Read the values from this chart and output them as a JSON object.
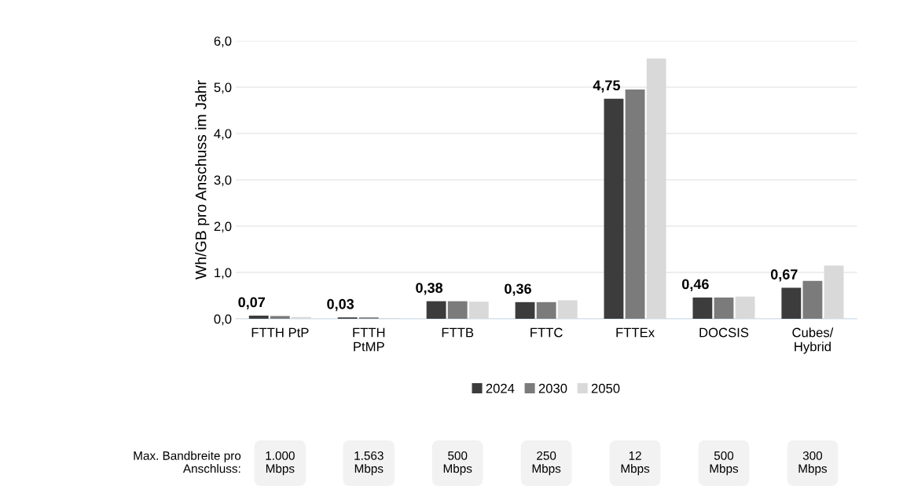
{
  "chart_data": {
    "type": "bar",
    "ylabel": "Wh/GB pro Anschuss im Jahr",
    "categories": [
      "FTTH PtP",
      "FTTH\nPtMP",
      "FTTB",
      "FTTC",
      "FTTEx",
      "DOCSIS",
      "Cubes/\nHybrid"
    ],
    "series": [
      {
        "name": "2024",
        "color": "#3c3c3c",
        "values": [
          0.07,
          0.03,
          0.38,
          0.36,
          4.75,
          0.46,
          0.67
        ],
        "value_labels": [
          "0,07",
          "0,03",
          "0,38",
          "0,36",
          "4,75",
          "0,46",
          "0,67"
        ]
      },
      {
        "name": "2030",
        "color": "#7b7b7b",
        "values": [
          0.06,
          0.03,
          0.38,
          0.36,
          4.95,
          0.46,
          0.82
        ]
      },
      {
        "name": "2050",
        "color": "#d9d9d9",
        "values": [
          0.04,
          0.02,
          0.37,
          0.4,
          5.62,
          0.48,
          1.15
        ]
      }
    ],
    "ylim": [
      0,
      6
    ],
    "yticks": [
      {
        "value": 0,
        "label": "0,0"
      },
      {
        "value": 1,
        "label": "1,0"
      },
      {
        "value": 2,
        "label": "2,0"
      },
      {
        "value": 3,
        "label": "3,0"
      },
      {
        "value": 4,
        "label": "4,0"
      },
      {
        "value": 5,
        "label": "5,0"
      },
      {
        "value": 6,
        "label": "6,0"
      }
    ],
    "grid": "y",
    "legend": "bottom",
    "annotations": [
      "Max. Bandbreite pro\nAnschluss:",
      "1.000\nMbps",
      "1.563\nMbps",
      "500\nMbps",
      "250\nMbps",
      "12\nMbps",
      "500\nMbps",
      "300\nMbps"
    ]
  }
}
